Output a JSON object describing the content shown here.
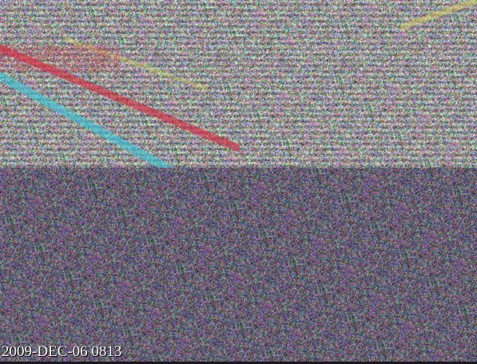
{
  "camera": {
    "timestamp": "2009-DEC-06 0813"
  },
  "colors": {
    "upper_band_tint": "#7a8a8a",
    "lower_band_tint": "#5a4a66",
    "streak_red": "#d8283c",
    "streak_cyan": "#39c8d8",
    "streak_yellow": "#d8d060"
  }
}
